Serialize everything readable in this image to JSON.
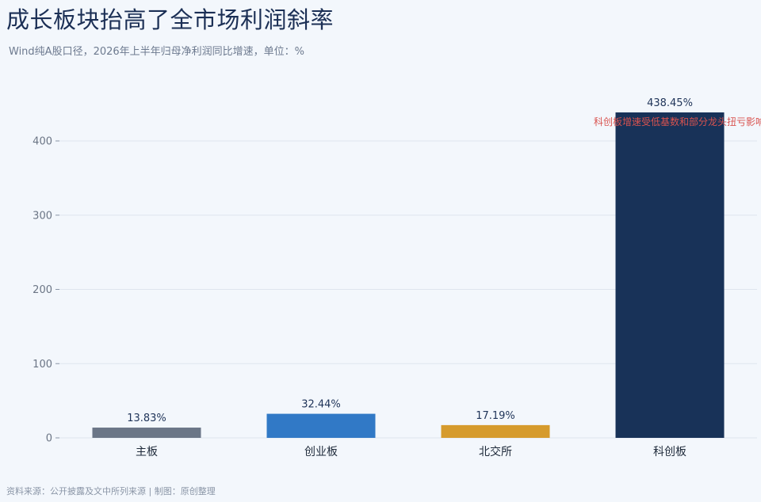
{
  "header": {
    "title": "成长板块抬高了全市场利润斜率",
    "subtitle": "Wind纯A股口径，2026年上半年归母净利润同比增速，单位：%"
  },
  "footer": {
    "source": "资料来源：公开披露及文中所列来源 | 制图：原创整理"
  },
  "chart_data": {
    "type": "bar",
    "title": "成长板块抬高了全市场利润斜率",
    "subtitle": "Wind纯A股口径，2026年上半年归母净利润同比增速，单位：%",
    "categories": [
      "主板",
      "创业板",
      "北交所",
      "科创板"
    ],
    "values": [
      13.83,
      32.44,
      17.19,
      438.45
    ],
    "data_labels": [
      "13.83%",
      "32.44%",
      "17.19%",
      "438.45%"
    ],
    "colors": [
      "#6b7687",
      "#3179c6",
      "#d69b2d",
      "#183258"
    ],
    "ylim": [
      0,
      440
    ],
    "yticks": [
      0,
      100,
      200,
      300,
      400
    ],
    "grid": true,
    "annotation": {
      "text": "科创板增速受低基数和部分龙头扭亏影响",
      "color": "#d9534f",
      "category": "科创板"
    }
  }
}
